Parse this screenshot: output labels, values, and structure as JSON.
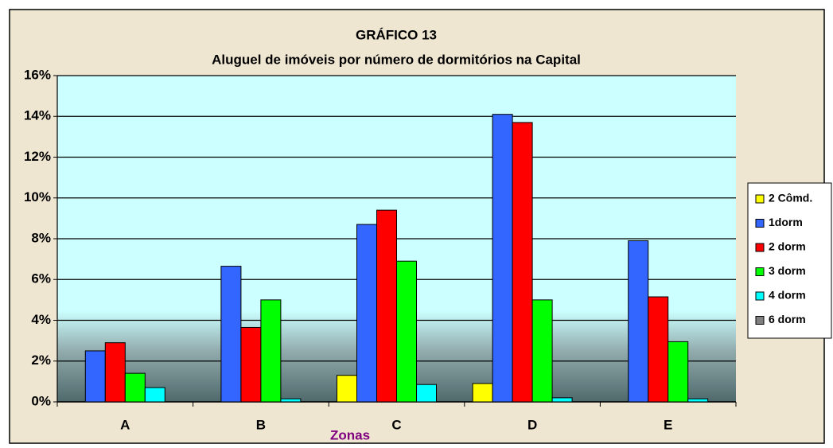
{
  "chart_data": {
    "type": "bar",
    "title": "GRÁFICO 13",
    "subtitle": "Aluguel de imóveis por número de dormitórios na Capital",
    "x_label": "Zonas",
    "categories": [
      "A",
      "B",
      "C",
      "D",
      "E"
    ],
    "series": [
      {
        "name": "2 Cômd.",
        "color": "#ffff00",
        "values": [
          0,
          0,
          1.3,
          0.9,
          0
        ]
      },
      {
        "name": "1dorm",
        "color": "#3366ff",
        "values": [
          2.5,
          6.65,
          8.7,
          14.1,
          7.9
        ]
      },
      {
        "name": "2 dorm",
        "color": "#ff0000",
        "values": [
          2.9,
          3.65,
          9.4,
          13.7,
          5.15
        ]
      },
      {
        "name": "3 dorm",
        "color": "#00ff00",
        "values": [
          1.4,
          5.0,
          6.9,
          5.0,
          2.95
        ]
      },
      {
        "name": "4 dorm",
        "color": "#00ffff",
        "values": [
          0.7,
          0.15,
          0.85,
          0.2,
          0.15
        ]
      },
      {
        "name": "6 dorm",
        "color": "#808080",
        "values": [
          0,
          0,
          0,
          0,
          0
        ]
      }
    ],
    "ylim": [
      0,
      16
    ],
    "yticks": [
      {
        "value": 0,
        "label": "0%"
      },
      {
        "value": 2,
        "label": "2%"
      },
      {
        "value": 4,
        "label": "4%"
      },
      {
        "value": 6,
        "label": "6%"
      },
      {
        "value": 8,
        "label": "8%"
      },
      {
        "value": 10,
        "label": "10%"
      },
      {
        "value": 12,
        "label": "12%"
      },
      {
        "value": 14,
        "label": "14%"
      },
      {
        "value": 16,
        "label": "16%"
      }
    ],
    "grid": true,
    "legend": "right"
  }
}
